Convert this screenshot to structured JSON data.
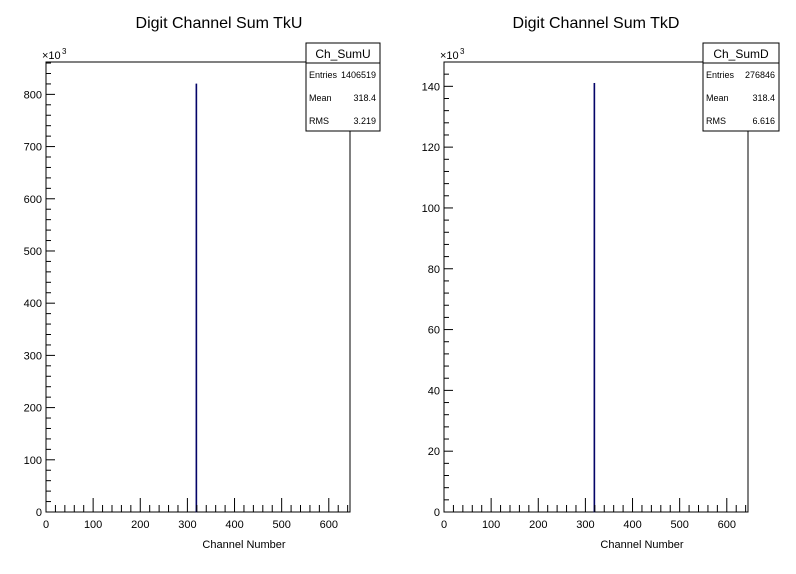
{
  "chart_data": [
    {
      "type": "bar",
      "title": "Digit Channel Sum TkU",
      "xlabel": "Channel Number",
      "ylabel": "",
      "xlim": [
        0,
        645
      ],
      "ylim": [
        0,
        862
      ],
      "y_multiplier": {
        "base": "×10",
        "exp": "3"
      },
      "x_ticks": [
        0,
        100,
        200,
        300,
        400,
        500,
        600
      ],
      "y_ticks": [
        0,
        100,
        200,
        300,
        400,
        500,
        600,
        700,
        800
      ],
      "bins": [
        {
          "x": 318,
          "width": 2,
          "value": 820
        }
      ],
      "series_color": "#000066",
      "stats": {
        "name": "Ch_SumU",
        "rows": [
          {
            "label": "Entries",
            "value": "1406519"
          },
          {
            "label": "Mean",
            "value": "318.4"
          },
          {
            "label": "RMS",
            "value": "3.219"
          }
        ]
      }
    },
    {
      "type": "bar",
      "title": "Digit Channel Sum TkD",
      "xlabel": "Channel Number",
      "ylabel": "",
      "xlim": [
        0,
        645
      ],
      "ylim": [
        0,
        148
      ],
      "y_multiplier": {
        "base": "×10",
        "exp": "3"
      },
      "x_ticks": [
        0,
        100,
        200,
        300,
        400,
        500,
        600
      ],
      "y_ticks": [
        0,
        20,
        40,
        60,
        80,
        100,
        120,
        140
      ],
      "bins": [
        {
          "x": 318,
          "width": 2,
          "value": 141
        }
      ],
      "series_color": "#000066",
      "stats": {
        "name": "Ch_SumD",
        "rows": [
          {
            "label": "Entries",
            "value": "276846"
          },
          {
            "label": "Mean",
            "value": "318.4"
          },
          {
            "label": "RMS",
            "value": "6.616"
          }
        ]
      }
    }
  ]
}
